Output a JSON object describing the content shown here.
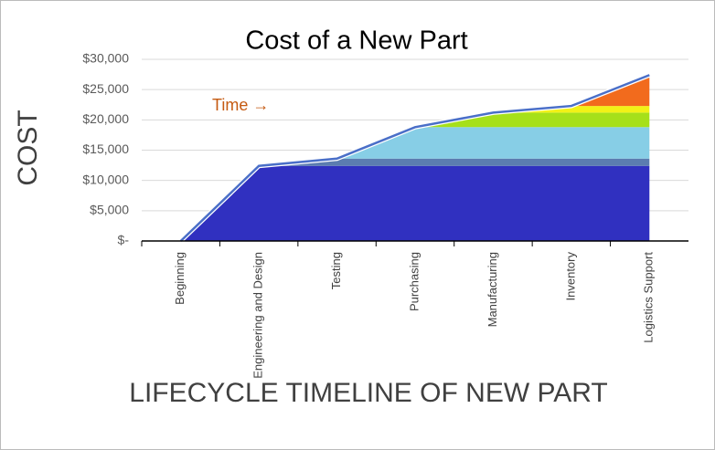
{
  "chart_data": {
    "type": "stacked-area",
    "title": "Cost of a New Part",
    "ylabel": "COST",
    "xlabel": "LIFECYCLE TIMELINE OF NEW PART",
    "annotation": "Time →",
    "categories": [
      "Beginning",
      "Engineering and Design",
      "Testing",
      "Purchasing",
      "Manufacturing",
      "Inventory",
      "Logistics Support"
    ],
    "series": [
      {
        "color": "#3030c0",
        "values": [
          0,
          12400,
          12400,
          12400,
          12400,
          12400,
          12400
        ]
      },
      {
        "color": "#5b7cb0",
        "values": [
          0,
          0,
          1200,
          1200,
          1200,
          1200,
          1200
        ]
      },
      {
        "color": "#87cee6",
        "values": [
          0,
          0,
          0,
          5200,
          5200,
          5200,
          5200
        ]
      },
      {
        "color": "#a6e01a",
        "values": [
          0,
          0,
          0,
          0,
          2400,
          2400,
          2400
        ]
      },
      {
        "color": "#f2f216",
        "values": [
          0,
          0,
          0,
          0,
          0,
          1100,
          1100
        ]
      },
      {
        "color": "#f26b1d",
        "values": [
          0,
          0,
          0,
          0,
          0,
          0,
          5100
        ]
      }
    ],
    "line_color": "#4a6fc8",
    "ylim": [
      0,
      30000
    ],
    "yticks": [
      {
        "value": 0,
        "label": "$-"
      },
      {
        "value": 5000,
        "label": "$5,000"
      },
      {
        "value": 10000,
        "label": "$10,000"
      },
      {
        "value": 15000,
        "label": "$15,000"
      },
      {
        "value": 20000,
        "label": "$20,000"
      },
      {
        "value": 25000,
        "label": "$25,000"
      },
      {
        "value": 30000,
        "label": "$30,000"
      }
    ],
    "grid": true
  }
}
